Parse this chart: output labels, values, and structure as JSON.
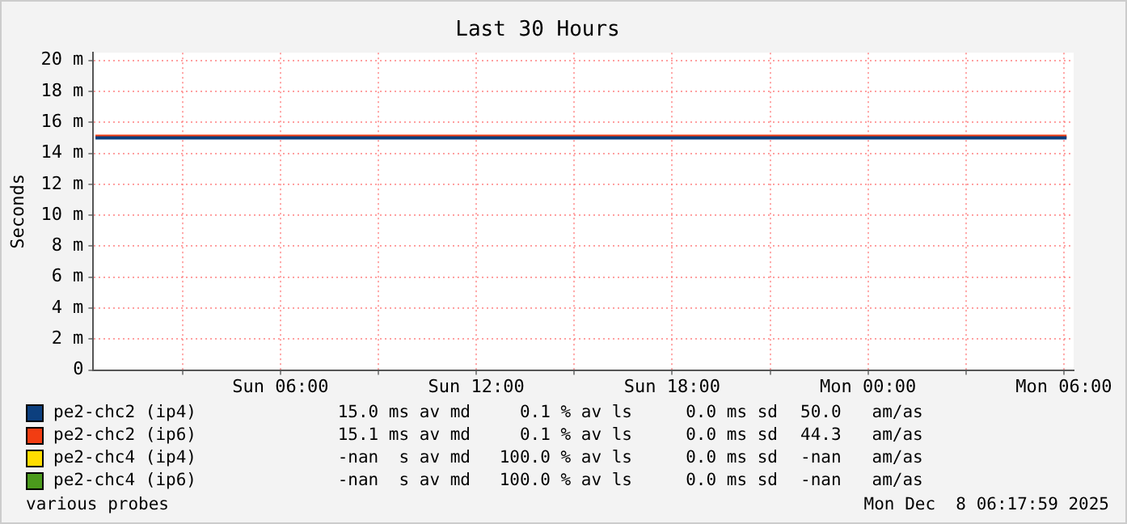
{
  "chart_data": {
    "type": "line",
    "title": "Last 30 Hours",
    "ylabel": "Seconds",
    "x": [
      "2025-12-07T00:20",
      "2025-12-07T05:00",
      "2025-12-07T10:00",
      "2025-12-07T15:00",
      "2025-12-07T20:00",
      "2025-12-08T01:00",
      "2025-12-08T06:05"
    ],
    "series": [
      {
        "name": "pe2-chc2 (ip4)",
        "color": "#0c3f7e",
        "values": [
          15.0,
          15.0,
          15.0,
          15.0,
          15.0,
          15.0,
          15.0
        ]
      },
      {
        "name": "pe2-chc2 (ip6)",
        "color": "#f23d12",
        "values": [
          15.1,
          15.1,
          15.1,
          15.1,
          15.1,
          15.1,
          15.1
        ]
      },
      {
        "name": "pe2-chc4 (ip4)",
        "color": "#ffdd00",
        "values": [
          null,
          null,
          null,
          null,
          null,
          null,
          null
        ]
      },
      {
        "name": "pe2-chc4 (ip6)",
        "color": "#4b9a1c",
        "values": [
          null,
          null,
          null,
          null,
          null,
          null,
          null
        ]
      }
    ],
    "xlim": [
      "2025-12-07T00:16",
      "2025-12-08T06:18"
    ],
    "xticks": [
      {
        "value": "2025-12-07T03:00",
        "label": null
      },
      {
        "value": "2025-12-07T06:00",
        "label": "Sun 06:00"
      },
      {
        "value": "2025-12-07T09:00",
        "label": null
      },
      {
        "value": "2025-12-07T12:00",
        "label": "Sun 12:00"
      },
      {
        "value": "2025-12-07T15:00",
        "label": null
      },
      {
        "value": "2025-12-07T18:00",
        "label": "Sun 18:00"
      },
      {
        "value": "2025-12-07T21:00",
        "label": null
      },
      {
        "value": "2025-12-08T00:00",
        "label": "Mon 00:00"
      },
      {
        "value": "2025-12-08T03:00",
        "label": null
      },
      {
        "value": "2025-12-08T06:00",
        "label": "Mon 06:00"
      }
    ],
    "ylim": [
      0,
      20.5
    ],
    "yticks": [
      0,
      {
        "value": 2,
        "label": "2 m"
      },
      {
        "value": 4,
        "label": "4 m"
      },
      {
        "value": 6,
        "label": "6 m"
      },
      {
        "value": 8,
        "label": "8 m"
      },
      {
        "value": 10,
        "label": "10 m"
      },
      {
        "value": 12,
        "label": "12 m"
      },
      {
        "value": 14,
        "label": "14 m"
      },
      {
        "value": 16,
        "label": "16 m"
      },
      {
        "value": 18,
        "label": "18 m"
      },
      {
        "value": 20,
        "label": "20 m"
      }
    ],
    "grid": true,
    "legend": "bottom",
    "marker": "none",
    "line_style": "solid",
    "annotations": [
      "15.0 ms av md",
      "0.1 % av ls",
      "0.0 ms sd",
      "50.0   am/as",
      "15.1 ms av md",
      "0.1 % av ls",
      "0.0 ms sd",
      "44.3   am/as",
      "-nan  s av md",
      "100.0 % av ls",
      "0.0 ms sd",
      "-nan   am/as",
      "-nan  s av md",
      "100.0 % av ls",
      "0.0 ms sd",
      "-nan   am/as",
      "various probes",
      "Mon Dec  8 06:17:59 2025"
    ]
  }
}
